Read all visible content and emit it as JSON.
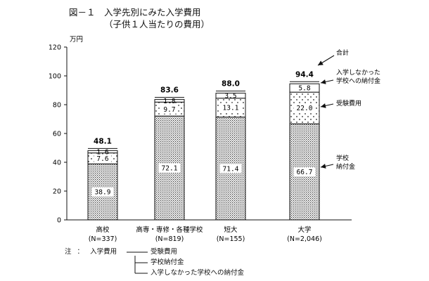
{
  "title": "図－１　入学先別にみた入学費用",
  "subtitle": "（子供１人当たりの費用）",
  "chart_data": {
    "type": "bar",
    "stacked": true,
    "categories": [
      "高校",
      "高専・専修・各種学校",
      "短大",
      "大学"
    ],
    "category_notes": [
      "(N=337)",
      "(N=819)",
      "(N=155)",
      "(N=2,046)"
    ],
    "series": [
      {
        "name": "学校\n納付金",
        "values": [
          38.9,
          72.1,
          71.4,
          66.7
        ],
        "labels": [
          "38.9",
          "72.1",
          "71.4",
          "66.7"
        ]
      },
      {
        "name": "受験費用",
        "values": [
          7.6,
          9.7,
          13.1,
          22.0
        ],
        "labels": [
          "7.6",
          "9.7",
          "13.1",
          "22.0"
        ]
      },
      {
        "name": "入学しなかった\n学校への納付金",
        "values": [
          1.6,
          1.8,
          3.5,
          5.8
        ],
        "labels": [
          "1.6",
          "1.8",
          "3.5",
          "5.8"
        ]
      }
    ],
    "totals": [
      48.1,
      83.6,
      88.0,
      94.4
    ],
    "total_labels": [
      "48.1",
      "83.6",
      "88.0",
      "94.4"
    ],
    "total_annotation": "合計",
    "y_unit": "万円",
    "ylim": [
      0,
      120
    ],
    "y_ticks": [
      0,
      20,
      40,
      60,
      80,
      100,
      120
    ],
    "grid": false,
    "legend": "right"
  },
  "note": {
    "prefix": "注",
    "colon": "：",
    "root": "入学費用",
    "items": [
      "受験費用",
      "学校納付金",
      "入学しなかった学校への納付金"
    ]
  },
  "colors": {
    "axis": "#111111",
    "text": "#111111",
    "bar_fill": "#ffffff"
  }
}
